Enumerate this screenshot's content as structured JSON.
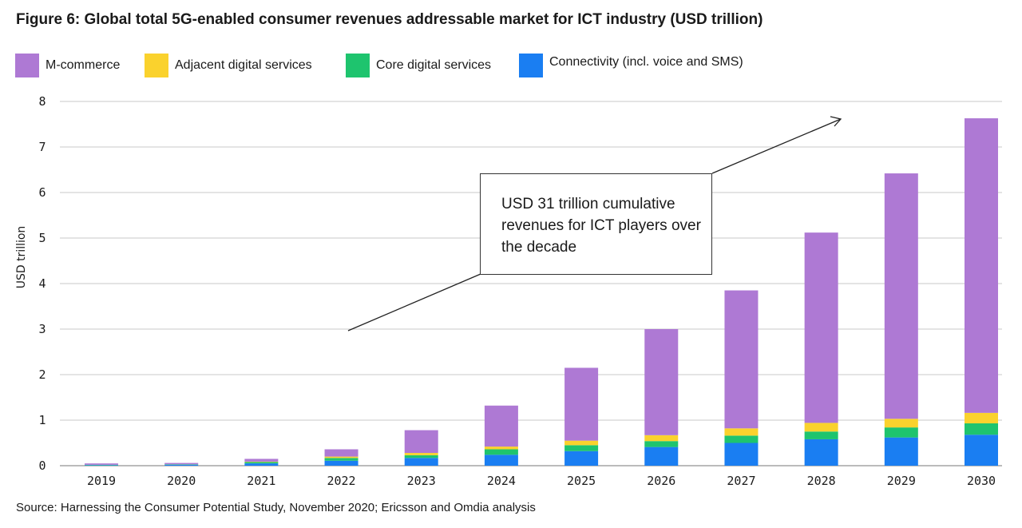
{
  "title": "Figure 6: Global total 5G-enabled consumer revenues addressable market for ICT industry (USD trillion)",
  "source": "Source: Harnessing the Consumer Potential Study, November 2020; Ericsson and Omdia analysis",
  "annotation": "USD 31 trillion cumulative revenues for ICT players over the decade",
  "chart_data": {
    "type": "bar",
    "stacked": true,
    "title": "Figure 6: Global total 5G-enabled consumer revenues addressable market for ICT industry (USD trillion)",
    "ylabel": "USD trillion",
    "xlabel": "",
    "ylim": [
      0,
      8
    ],
    "yticks": [
      0,
      1,
      2,
      3,
      4,
      5,
      6,
      7,
      8
    ],
    "grid": true,
    "legend_position": "top-left",
    "categories": [
      "2019",
      "2020",
      "2021",
      "2022",
      "2023",
      "2024",
      "2025",
      "2026",
      "2027",
      "2028",
      "2029",
      "2030"
    ],
    "series": [
      {
        "name": "Connectivity (incl. voice and SMS)",
        "color": "#1a7ef2",
        "values": [
          0.01,
          0.02,
          0.05,
          0.11,
          0.17,
          0.24,
          0.32,
          0.41,
          0.5,
          0.58,
          0.62,
          0.68
        ]
      },
      {
        "name": "Core digital services",
        "color": "#1ec46e",
        "values": [
          0.01,
          0.01,
          0.03,
          0.06,
          0.06,
          0.12,
          0.13,
          0.13,
          0.16,
          0.17,
          0.22,
          0.25
        ]
      },
      {
        "name": "Adjacent digital services",
        "color": "#fad22d",
        "values": [
          0.0,
          0.0,
          0.01,
          0.03,
          0.05,
          0.06,
          0.1,
          0.13,
          0.16,
          0.19,
          0.19,
          0.23
        ]
      },
      {
        "name": "M-commerce",
        "color": "#ae79d4",
        "values": [
          0.03,
          0.03,
          0.06,
          0.16,
          0.5,
          0.9,
          1.6,
          2.33,
          3.03,
          4.18,
          5.39,
          6.47
        ]
      }
    ]
  }
}
